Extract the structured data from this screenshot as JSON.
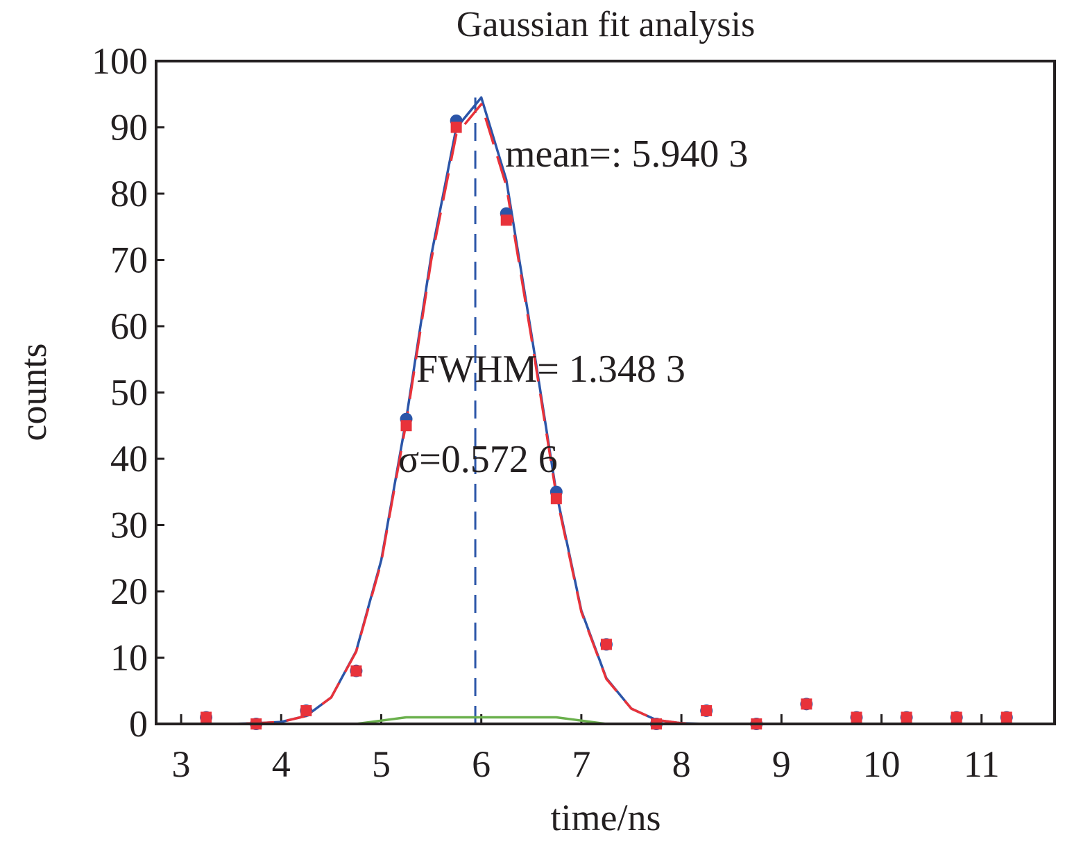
{
  "chart_data": {
    "type": "scatter",
    "title": "Gaussian fit analysis",
    "x_label": "time/ns",
    "y_label": "counts",
    "xlim": [
      2.75,
      11.73
    ],
    "ylim": [
      0,
      100
    ],
    "xticks": [
      3,
      4,
      5,
      6,
      7,
      8,
      9,
      10,
      11
    ],
    "yticks": [
      0,
      10,
      20,
      30,
      40,
      50,
      60,
      70,
      80,
      90,
      100
    ],
    "series": [
      {
        "style": "line",
        "dash": "solid",
        "color": "#2b55a8",
        "x": [
          3.25,
          3.5,
          3.75,
          4.0,
          4.25,
          4.5,
          4.75,
          5.0,
          5.25,
          5.5,
          5.75,
          6.0,
          6.25,
          6.5,
          6.75,
          7.0,
          7.25,
          7.5,
          7.75,
          8.0,
          8.25,
          8.5,
          8.75,
          9.0,
          9.25,
          9.5,
          9.75,
          10.0,
          10.25,
          10.5,
          10.75,
          11.0,
          11.25
        ],
        "values": [
          0,
          0,
          0.1,
          0.3,
          1.2,
          4.0,
          11.0,
          24.7,
          46.0,
          70.7,
          89.9,
          94.5,
          82.1,
          58.9,
          34.9,
          17.1,
          6.9,
          2.3,
          0.6,
          0.1,
          0,
          0,
          0,
          0,
          0,
          0,
          0,
          0,
          0,
          0,
          0,
          0,
          0
        ]
      },
      {
        "style": "line",
        "dash": "dashed",
        "color": "#e8323a",
        "x": [
          3.25,
          3.5,
          3.75,
          4.0,
          4.25,
          4.5,
          4.75,
          5.0,
          5.25,
          5.5,
          5.75,
          6.0,
          6.25,
          6.5,
          6.75,
          7.0,
          7.25,
          7.5,
          7.75,
          8.0,
          8.25,
          8.5,
          8.75,
          9.0,
          9.25,
          9.5,
          9.75,
          10.0,
          10.25,
          10.5,
          10.75,
          11.0,
          11.25
        ],
        "values": [
          0,
          0,
          0.1,
          0.3,
          1.2,
          4.0,
          10.9,
          24.4,
          45.5,
          70.0,
          88.9,
          93.5,
          81.2,
          58.3,
          34.5,
          16.9,
          6.8,
          2.3,
          0.6,
          0.1,
          0,
          0,
          0,
          0,
          0,
          0,
          0,
          0,
          0,
          0,
          0,
          0,
          0
        ]
      },
      {
        "style": "line",
        "dash": "solid",
        "color": "#6ab04c",
        "x": [
          3.25,
          3.5,
          3.75,
          4.0,
          4.25,
          4.5,
          4.75,
          5.0,
          5.25,
          5.5,
          5.75,
          6.0,
          6.25,
          6.5,
          6.75,
          7.0,
          7.25,
          7.5,
          7.75,
          8.0,
          8.25,
          8.5,
          8.75,
          9.0,
          9.25,
          9.5,
          9.75,
          10.0,
          10.25,
          10.5,
          10.75,
          11.0,
          11.25
        ],
        "values": [
          0,
          0,
          0,
          0,
          0,
          0,
          0,
          0.5,
          1,
          1,
          1,
          1,
          1,
          1,
          1,
          0.5,
          0,
          0,
          0,
          0,
          0,
          0,
          0,
          0,
          0,
          0,
          0,
          0,
          0,
          0,
          0,
          0,
          0
        ]
      },
      {
        "style": "marker",
        "marker": "circle",
        "color": "#2b55a8",
        "x": [
          3.25,
          3.75,
          4.25,
          4.75,
          5.25,
          5.75,
          6.25,
          6.75,
          7.25,
          7.75,
          8.25,
          8.75,
          9.25,
          9.75,
          10.25,
          10.75,
          11.25
        ],
        "values": [
          1,
          0,
          2,
          8,
          46,
          91,
          77,
          35,
          12,
          0,
          2,
          0,
          3,
          1,
          1,
          1,
          1
        ]
      },
      {
        "style": "marker",
        "marker": "square",
        "color": "#e8323a",
        "x": [
          3.25,
          3.75,
          4.25,
          4.75,
          5.25,
          5.75,
          6.25,
          6.75,
          7.25,
          7.75,
          8.25,
          8.75,
          9.25,
          9.75,
          10.25,
          10.75,
          11.25
        ],
        "values": [
          1,
          0,
          2,
          8,
          45,
          90,
          76,
          34,
          12,
          0,
          2,
          0,
          3,
          1,
          1,
          1,
          1
        ]
      }
    ],
    "mean_line": {
      "x": 5.9403,
      "color": "#2b55a8"
    },
    "annotations": [
      "mean=: 5.940 3",
      "FWHM= 1.348 3",
      "σ=0.572 6"
    ]
  }
}
